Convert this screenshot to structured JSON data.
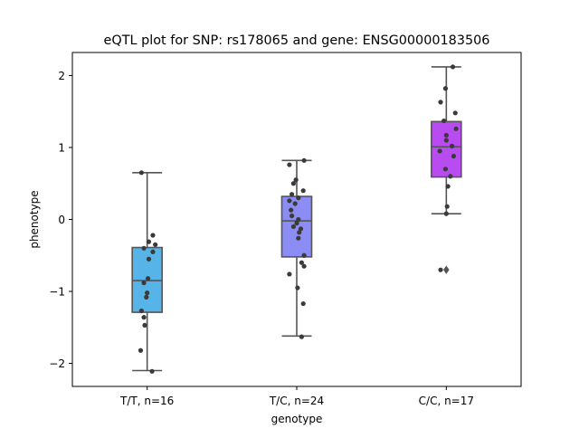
{
  "chart_data": {
    "type": "box",
    "title": "eQTL plot for SNP: rs178065 and gene: ENSG00000183506",
    "xlabel": "genotype",
    "ylabel": "phenotype",
    "ylim": [
      -2.32,
      2.32
    ],
    "yticks": [
      -2,
      -1,
      0,
      1,
      2
    ],
    "ytick_labels": [
      "−2",
      "−1",
      "0",
      "1",
      "2"
    ],
    "grid": false,
    "categories": [
      "T/T, n=16",
      "T/C, n=24",
      "C/C, n=17"
    ],
    "series": [
      {
        "category": "T/T, n=16",
        "color": "#56b4e9",
        "box": {
          "whisker_low": -2.1,
          "q1": -1.29,
          "median": -0.85,
          "q3": -0.39,
          "whisker_high": 0.65
        },
        "outliers": [],
        "points": [
          {
            "jitter": -0.35,
            "y": 0.65
          },
          {
            "jitter": 0.35,
            "y": -0.22
          },
          {
            "jitter": 0.1,
            "y": -0.31
          },
          {
            "jitter": 0.5,
            "y": -0.35
          },
          {
            "jitter": -0.2,
            "y": -0.4
          },
          {
            "jitter": 0.35,
            "y": -0.45
          },
          {
            "jitter": 0.1,
            "y": -0.55
          },
          {
            "jitter": 0.05,
            "y": -0.82
          },
          {
            "jitter": -0.2,
            "y": -0.88
          },
          {
            "jitter": 0.0,
            "y": -1.02
          },
          {
            "jitter": -0.05,
            "y": -1.08
          },
          {
            "jitter": -0.35,
            "y": -1.27
          },
          {
            "jitter": -0.2,
            "y": -1.36
          },
          {
            "jitter": -0.15,
            "y": -1.47
          },
          {
            "jitter": -0.4,
            "y": -1.82
          },
          {
            "jitter": 0.3,
            "y": -2.11
          }
        ]
      },
      {
        "category": "T/C, n=24",
        "color": "#8c8cf5",
        "box": {
          "whisker_low": -1.62,
          "q1": -0.52,
          "median": -0.02,
          "q3": 0.32,
          "whisker_high": 0.82
        },
        "outliers": [],
        "points": [
          {
            "jitter": 0.45,
            "y": 0.82
          },
          {
            "jitter": -0.45,
            "y": 0.76
          },
          {
            "jitter": -0.05,
            "y": 0.55
          },
          {
            "jitter": -0.2,
            "y": 0.5
          },
          {
            "jitter": 0.4,
            "y": 0.4
          },
          {
            "jitter": -0.3,
            "y": 0.35
          },
          {
            "jitter": 0.1,
            "y": 0.3
          },
          {
            "jitter": -0.45,
            "y": 0.26
          },
          {
            "jitter": -0.1,
            "y": 0.22
          },
          {
            "jitter": -0.35,
            "y": 0.13
          },
          {
            "jitter": -0.3,
            "y": 0.05
          },
          {
            "jitter": 0.1,
            "y": 0.0
          },
          {
            "jitter": 0.0,
            "y": -0.05
          },
          {
            "jitter": -0.2,
            "y": -0.1
          },
          {
            "jitter": 0.25,
            "y": -0.13
          },
          {
            "jitter": 0.15,
            "y": -0.18
          },
          {
            "jitter": 0.1,
            "y": -0.26
          },
          {
            "jitter": 0.45,
            "y": -0.5
          },
          {
            "jitter": 0.3,
            "y": -0.6
          },
          {
            "jitter": 0.45,
            "y": -0.65
          },
          {
            "jitter": -0.45,
            "y": -0.76
          },
          {
            "jitter": 0.05,
            "y": -0.95
          },
          {
            "jitter": 0.4,
            "y": -1.17
          },
          {
            "jitter": 0.3,
            "y": -1.63
          }
        ]
      },
      {
        "category": "C/C, n=17",
        "color": "#b84cf0",
        "box": {
          "whisker_low": 0.08,
          "q1": 0.59,
          "median": 1.01,
          "q3": 1.36,
          "whisker_high": 2.12
        },
        "outliers": [
          -0.7
        ],
        "points": [
          {
            "jitter": 0.4,
            "y": 2.12
          },
          {
            "jitter": -0.05,
            "y": 1.82
          },
          {
            "jitter": -0.35,
            "y": 1.63
          },
          {
            "jitter": 0.55,
            "y": 1.48
          },
          {
            "jitter": -0.15,
            "y": 1.37
          },
          {
            "jitter": 0.6,
            "y": 1.26
          },
          {
            "jitter": 0.0,
            "y": 1.17
          },
          {
            "jitter": 0.0,
            "y": 1.1
          },
          {
            "jitter": 0.35,
            "y": 1.02
          },
          {
            "jitter": -0.4,
            "y": 0.95
          },
          {
            "jitter": 0.45,
            "y": 0.88
          },
          {
            "jitter": -0.05,
            "y": 0.7
          },
          {
            "jitter": 0.25,
            "y": 0.6
          },
          {
            "jitter": 0.1,
            "y": 0.46
          },
          {
            "jitter": 0.05,
            "y": 0.18
          },
          {
            "jitter": 0.0,
            "y": 0.08
          },
          {
            "jitter": -0.35,
            "y": -0.7
          }
        ]
      }
    ]
  }
}
